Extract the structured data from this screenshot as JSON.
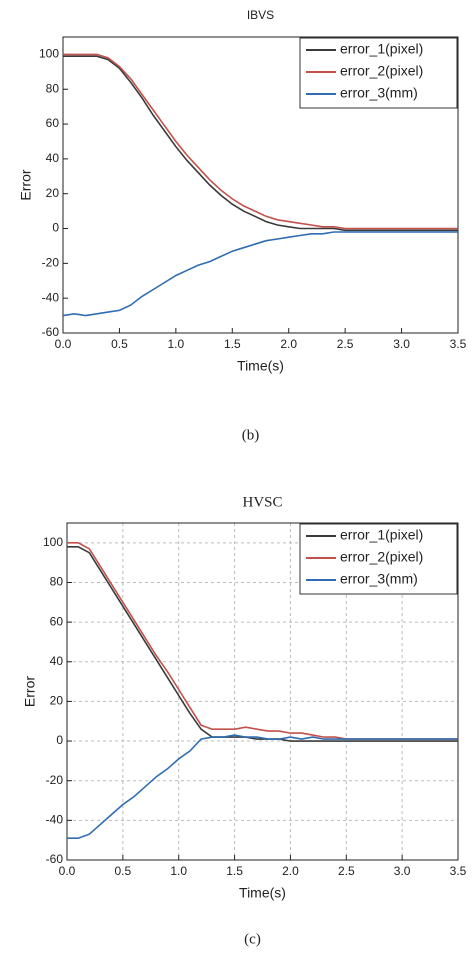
{
  "chart_data": [
    {
      "type": "line",
      "title": "IBVS",
      "caption": "(b)",
      "x_label": "Time(s)",
      "y_label": "Error",
      "grid": false,
      "legend": "upper right",
      "x": [
        0,
        0.1,
        0.2,
        0.3,
        0.4,
        0.5,
        0.6,
        0.7,
        0.8,
        0.9,
        1.0,
        1.1,
        1.2,
        1.3,
        1.4,
        1.5,
        1.6,
        1.7,
        1.8,
        1.9,
        2.0,
        2.1,
        2.2,
        2.3,
        2.4,
        2.5,
        2.6,
        2.7,
        2.8,
        2.9,
        3.0,
        3.1,
        3.2,
        3.3,
        3.4,
        3.5
      ],
      "series": [
        {
          "name": "error_1(pixel)",
          "color": "#3a3a3a",
          "values": [
            99,
            99,
            99,
            99,
            97,
            92,
            84,
            75,
            65,
            56,
            47,
            39,
            32,
            25,
            19,
            14,
            10,
            7,
            4,
            2,
            1,
            0,
            0,
            0,
            0,
            -1,
            -1,
            -1,
            -1,
            -1,
            -1,
            -1,
            -1,
            -1,
            -1,
            -1
          ]
        },
        {
          "name": "error_2(pixel)",
          "color": "#c4504a",
          "values": [
            100,
            100,
            100,
            100,
            98,
            93,
            86,
            77,
            68,
            59,
            50,
            42,
            35,
            28,
            22,
            17,
            13,
            10,
            7,
            5,
            4,
            3,
            2,
            1,
            1,
            0,
            0,
            0,
            0,
            0,
            0,
            0,
            0,
            0,
            0,
            0
          ]
        },
        {
          "name": "error_3(mm)",
          "color": "#2f6db2",
          "values": [
            -50,
            -49,
            -50,
            -49,
            -48,
            -47,
            -44,
            -39,
            -35,
            -31,
            -27,
            -24,
            -21,
            -19,
            -16,
            -13,
            -11,
            -9,
            -7,
            -6,
            -5,
            -4,
            -3,
            -3,
            -2,
            -2,
            -2,
            -2,
            -2,
            -2,
            -2,
            -2,
            -2,
            -2,
            -2,
            -2
          ]
        }
      ],
      "xlim": [
        0,
        3.5
      ],
      "xticks": [
        {
          "value": 0,
          "label": "0.0"
        },
        0.5,
        {
          "value": 1,
          "label": "1.0"
        },
        1.5,
        {
          "value": 2,
          "label": "2.0"
        },
        2.5,
        {
          "value": 3,
          "label": "3.0"
        },
        3.5
      ],
      "ylim": [
        -60,
        110
      ],
      "yticks": [
        -60,
        -40,
        -20,
        0,
        20,
        40,
        60,
        80,
        100
      ]
    },
    {
      "type": "line",
      "title": "HVSC",
      "caption": "(c)",
      "x_label": "Time(s)",
      "y_label": "Error",
      "grid": true,
      "legend": "upper right",
      "x": [
        0,
        0.1,
        0.2,
        0.3,
        0.4,
        0.5,
        0.6,
        0.7,
        0.8,
        0.9,
        1.0,
        1.1,
        1.2,
        1.3,
        1.4,
        1.5,
        1.6,
        1.7,
        1.8,
        1.9,
        2.0,
        2.1,
        2.2,
        2.3,
        2.4,
        2.5,
        2.6,
        2.7,
        2.8,
        2.9,
        3.0,
        3.1,
        3.2,
        3.3,
        3.4,
        3.5
      ],
      "series": [
        {
          "name": "error_1(pixel)",
          "color": "#3a3a3a",
          "values": [
            98,
            98,
            95,
            86,
            77,
            68,
            59,
            50,
            41,
            32,
            23,
            14,
            6,
            2,
            2,
            2,
            2,
            1,
            1,
            1,
            0,
            0,
            0,
            0,
            0,
            0,
            0,
            0,
            0,
            0,
            0,
            0,
            0,
            0,
            0,
            0
          ]
        },
        {
          "name": "error_2(pixel)",
          "color": "#c4504a",
          "values": [
            100,
            100,
            97,
            88,
            79,
            70,
            61,
            52,
            43,
            35,
            26,
            17,
            8,
            6,
            6,
            6,
            7,
            6,
            5,
            5,
            4,
            4,
            3,
            2,
            2,
            1,
            1,
            1,
            1,
            1,
            1,
            1,
            1,
            1,
            1,
            1
          ]
        },
        {
          "name": "error_3(mm)",
          "color": "#2f6db2",
          "values": [
            -49,
            -49,
            -47,
            -42,
            -37,
            -32,
            -28,
            -23,
            -18,
            -14,
            -9,
            -5,
            1,
            2,
            2,
            3,
            2,
            2,
            1,
            1,
            2,
            1,
            2,
            1,
            1,
            1,
            1,
            1,
            1,
            1,
            1,
            1,
            1,
            1,
            1,
            1
          ]
        }
      ],
      "xlim": [
        0,
        3.5
      ],
      "xticks": [
        {
          "value": 0,
          "label": "0.0"
        },
        0.5,
        {
          "value": 1,
          "label": "1.0"
        },
        1.5,
        {
          "value": 2,
          "label": "2.0"
        },
        2.5,
        {
          "value": 3,
          "label": "3.0"
        },
        3.5
      ],
      "ylim": [
        -60,
        110
      ],
      "yticks": [
        -60,
        -40,
        -20,
        0,
        20,
        40,
        60,
        80,
        100
      ]
    }
  ]
}
